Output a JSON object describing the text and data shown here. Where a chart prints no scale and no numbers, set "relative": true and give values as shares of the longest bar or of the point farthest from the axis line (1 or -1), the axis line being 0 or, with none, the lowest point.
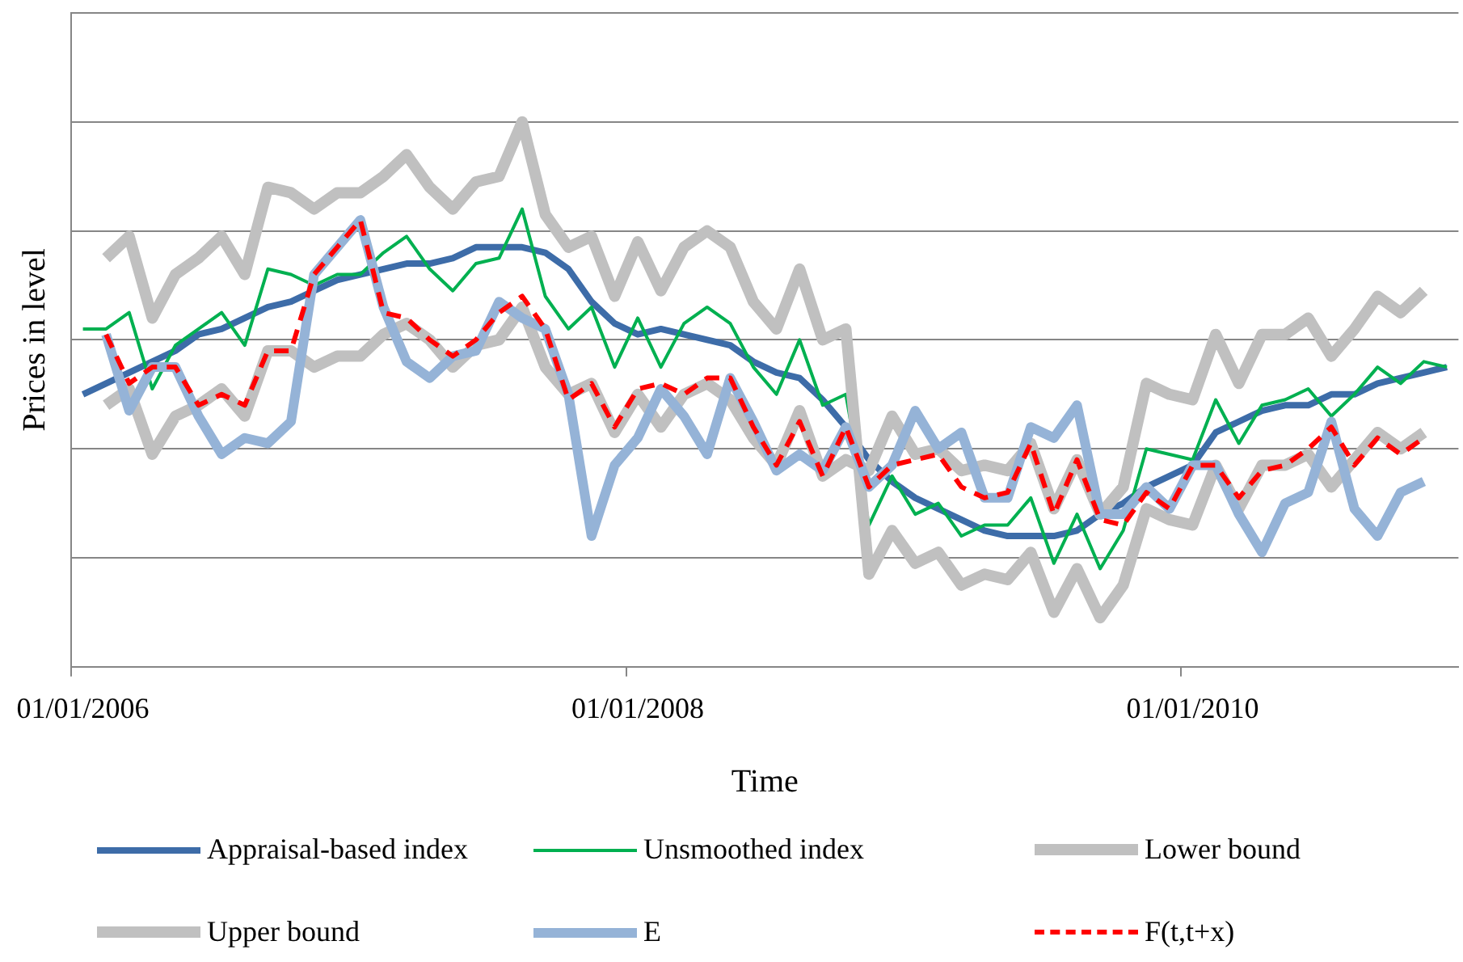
{
  "chart_data": {
    "type": "line",
    "relative": true,
    "xlabel": "Time",
    "ylabel": "Prices in level",
    "grid": "y",
    "legend": "bottom",
    "marker": "none",
    "categories": [
      "01/01/2006",
      null,
      null,
      null,
      null,
      null,
      null,
      null,
      null,
      null,
      null,
      null,
      null,
      null,
      null,
      null,
      null,
      null,
      null,
      null,
      null,
      null,
      null,
      null,
      "01/01/2008",
      null,
      null,
      null,
      null,
      null,
      null,
      null,
      null,
      null,
      null,
      null,
      null,
      null,
      null,
      null,
      null,
      null,
      null,
      null,
      null,
      null,
      null,
      null,
      "01/01/2010",
      null,
      null,
      null,
      null,
      null,
      null,
      null,
      null,
      null,
      null,
      null
    ],
    "series": [
      {
        "name": "Appraisal-based index",
        "color": "#3d6ca8",
        "values": [
          0.5,
          0.52,
          0.54,
          0.56,
          0.58,
          0.61,
          0.62,
          0.64,
          0.66,
          0.67,
          0.69,
          0.71,
          0.72,
          0.73,
          0.74,
          0.74,
          0.75,
          0.77,
          0.77,
          0.77,
          0.76,
          0.73,
          0.67,
          0.63,
          0.61,
          0.62,
          0.61,
          0.6,
          0.59,
          0.56,
          0.54,
          0.53,
          0.49,
          0.44,
          0.38,
          0.34,
          0.31,
          0.29,
          0.27,
          0.25,
          0.24,
          0.24,
          0.24,
          0.25,
          0.28,
          0.3,
          0.33,
          0.35,
          0.37,
          0.43,
          0.45,
          0.47,
          0.48,
          0.48,
          0.5,
          0.5,
          0.52,
          0.53,
          0.54,
          0.55
        ]
      },
      {
        "name": "Unsmoothed index",
        "color": "#00b050",
        "values": [
          0.62,
          0.62,
          0.65,
          0.51,
          0.59,
          0.62,
          0.65,
          0.59,
          0.73,
          0.72,
          0.7,
          0.72,
          0.72,
          0.76,
          0.79,
          0.73,
          0.69,
          0.74,
          0.75,
          0.84,
          0.68,
          0.62,
          0.66,
          0.55,
          0.64,
          0.55,
          0.63,
          0.66,
          0.63,
          0.55,
          0.5,
          0.6,
          0.48,
          0.5,
          0.26,
          0.35,
          0.28,
          0.3,
          0.24,
          0.26,
          0.26,
          0.31,
          0.19,
          0.28,
          0.18,
          0.25,
          0.4,
          0.39,
          0.38,
          0.49,
          0.41,
          0.48,
          0.49,
          0.51,
          0.46,
          0.5,
          0.55,
          0.52,
          0.56,
          0.55
        ]
      },
      {
        "name": "Lower bound",
        "color": "#c0c0c0",
        "values": [
          null,
          0.48,
          0.51,
          0.39,
          0.46,
          0.48,
          0.51,
          0.46,
          0.58,
          0.58,
          0.55,
          0.57,
          0.57,
          0.61,
          0.63,
          0.6,
          0.55,
          0.59,
          0.6,
          0.66,
          0.55,
          0.5,
          0.52,
          0.43,
          0.5,
          0.44,
          0.5,
          0.52,
          0.49,
          0.42,
          0.37,
          0.47,
          0.35,
          0.38,
          0.36,
          0.46,
          0.39,
          0.4,
          0.36,
          0.37,
          0.36,
          0.41,
          0.29,
          0.38,
          0.28,
          0.33,
          0.52,
          0.5,
          0.49,
          0.61,
          0.52,
          0.61,
          0.61,
          0.64,
          0.57,
          0.62,
          0.68,
          0.65,
          0.69,
          null
        ]
      },
      {
        "name": "Upper bound",
        "color": "#c0c0c0",
        "values": [
          null,
          0.75,
          0.79,
          0.64,
          0.72,
          0.75,
          0.79,
          0.72,
          0.88,
          0.87,
          0.84,
          0.87,
          0.87,
          0.9,
          0.94,
          0.88,
          0.84,
          0.89,
          0.9,
          1.0,
          0.83,
          0.77,
          0.79,
          0.68,
          0.78,
          0.69,
          0.77,
          0.8,
          0.77,
          0.67,
          0.62,
          0.73,
          0.6,
          0.62,
          0.17,
          0.25,
          0.19,
          0.21,
          0.15,
          0.17,
          0.16,
          0.21,
          0.1,
          0.18,
          0.09,
          0.15,
          0.29,
          0.27,
          0.26,
          0.37,
          0.29,
          0.37,
          0.37,
          0.39,
          0.33,
          0.38,
          0.43,
          0.4,
          0.43,
          null
        ]
      },
      {
        "name": "E",
        "color": "#95b3d7",
        "values": [
          null,
          0.61,
          0.47,
          0.55,
          0.55,
          0.46,
          0.39,
          0.42,
          0.41,
          0.45,
          0.72,
          0.77,
          0.82,
          0.66,
          0.56,
          0.53,
          0.57,
          0.58,
          0.67,
          0.64,
          0.62,
          0.5,
          0.24,
          0.37,
          0.42,
          0.51,
          0.46,
          0.39,
          0.53,
          0.45,
          0.36,
          0.39,
          0.36,
          0.44,
          0.33,
          0.37,
          0.47,
          0.4,
          0.43,
          0.31,
          0.31,
          0.44,
          0.42,
          0.48,
          0.28,
          0.28,
          0.33,
          0.29,
          0.37,
          0.37,
          0.28,
          0.21,
          0.3,
          0.32,
          0.45,
          0.29,
          0.24,
          0.32,
          0.34,
          null
        ]
      },
      {
        "name": "F(t,t+x)",
        "color": "#ff0000",
        "line_style": "dashed",
        "values": [
          null,
          0.61,
          0.52,
          0.55,
          0.55,
          0.48,
          0.5,
          0.48,
          0.58,
          0.58,
          0.72,
          0.77,
          0.82,
          0.65,
          0.64,
          0.6,
          0.57,
          0.6,
          0.65,
          0.68,
          0.62,
          0.49,
          0.52,
          0.44,
          0.51,
          0.52,
          0.5,
          0.53,
          0.53,
          0.44,
          0.37,
          0.45,
          0.35,
          0.44,
          0.33,
          0.37,
          0.38,
          0.39,
          0.33,
          0.31,
          0.32,
          0.41,
          0.28,
          0.38,
          0.27,
          0.26,
          0.32,
          0.29,
          0.37,
          0.37,
          0.31,
          0.36,
          0.37,
          0.4,
          0.44,
          0.37,
          0.42,
          0.39,
          0.42,
          null
        ]
      }
    ]
  }
}
